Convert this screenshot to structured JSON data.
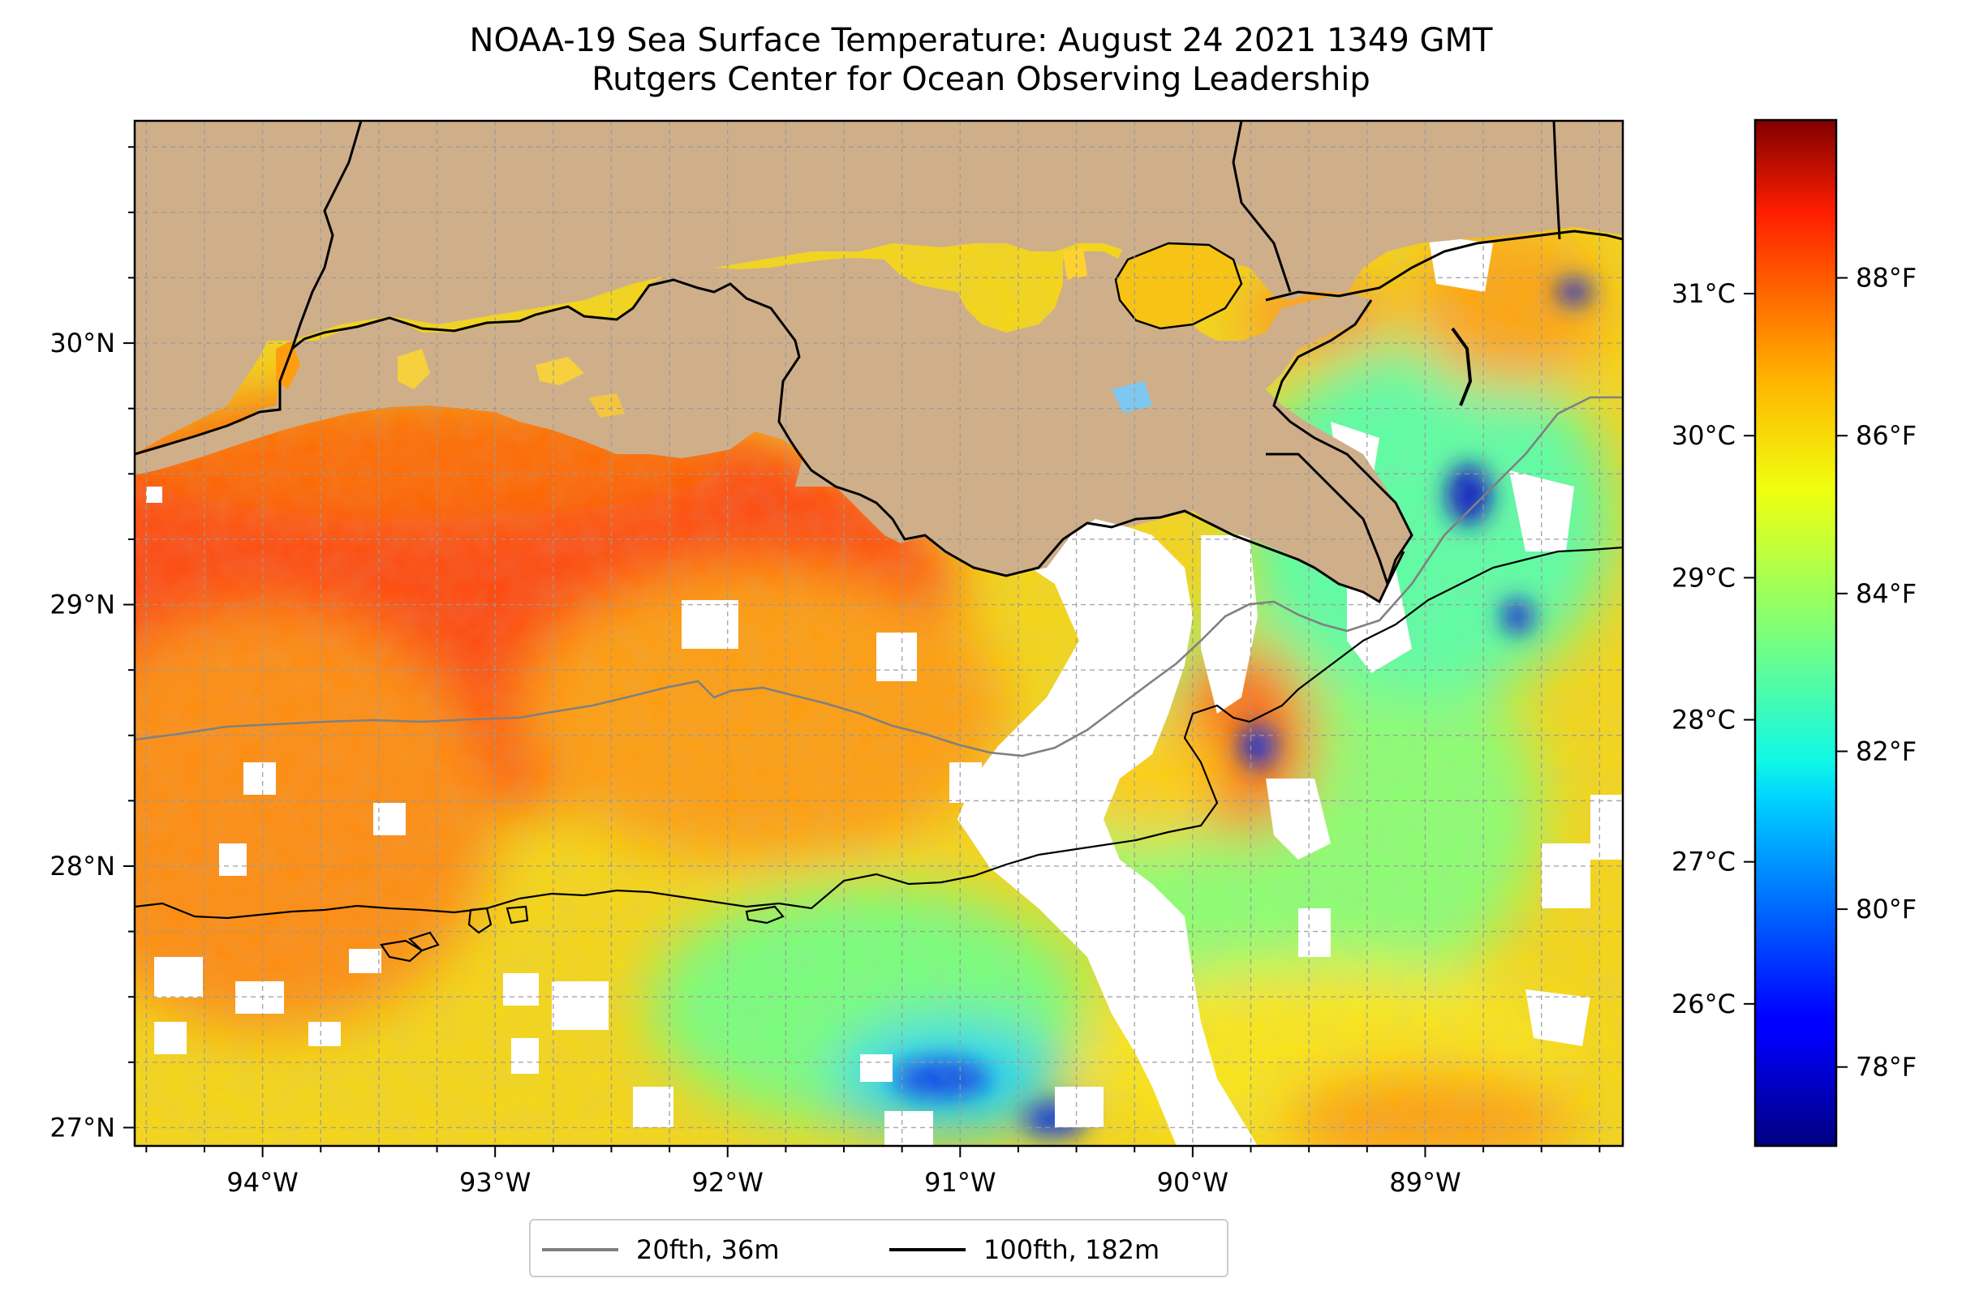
{
  "title": {
    "line1": "NOAA-19 Sea Surface Temperature: August 24 2021 1349 GMT",
    "line2": "Rutgers Center for Ocean Observing Leadership"
  },
  "map": {
    "extent": {
      "lon": [
        -94.55,
        -88.15
      ],
      "lat": [
        26.93,
        30.85
      ]
    },
    "lat_ticks": [
      {
        "value": 30,
        "label": "30°N"
      },
      {
        "value": 29,
        "label": "29°N"
      },
      {
        "value": 28,
        "label": "28°N"
      },
      {
        "value": 27,
        "label": "27°N"
      }
    ],
    "lon_ticks": [
      {
        "value": -94,
        "label": "94°W"
      },
      {
        "value": -93,
        "label": "93°W"
      },
      {
        "value": -92,
        "label": "92°W"
      },
      {
        "value": -91,
        "label": "91°W"
      },
      {
        "value": -90,
        "label": "90°W"
      },
      {
        "value": -89,
        "label": "89°W"
      }
    ],
    "land_color": "#cfaf8a",
    "no_data_color": "#ffffff",
    "gridlines": "dashed gray, every 0.25 degrees",
    "warm_core": "red-orange water west of 91°W, warmest near 29°N",
    "cool_areas": "green to blue water east of 90°W and near the coast"
  },
  "colorbar": {
    "colormap": "jet",
    "fahrenheit_range": [
      77,
      90
    ],
    "fahrenheit_ticks": [
      {
        "value": 78,
        "label": "78°F"
      },
      {
        "value": 80,
        "label": "80°F"
      },
      {
        "value": 82,
        "label": "82°F"
      },
      {
        "value": 84,
        "label": "84°F"
      },
      {
        "value": 86,
        "label": "86°F"
      },
      {
        "value": 88,
        "label": "88°F"
      }
    ],
    "celsius_ticks": [
      {
        "value": 26,
        "label": "26°C"
      },
      {
        "value": 27,
        "label": "27°C"
      },
      {
        "value": 28,
        "label": "28°C"
      },
      {
        "value": 29,
        "label": "29°C"
      },
      {
        "value": 30,
        "label": "30°C"
      },
      {
        "value": 31,
        "label": "31°C"
      }
    ]
  },
  "legend": {
    "items": [
      {
        "label": "20fth, 36m",
        "color": "#808080"
      },
      {
        "label": "100fth, 182m",
        "color": "#000000"
      }
    ]
  }
}
